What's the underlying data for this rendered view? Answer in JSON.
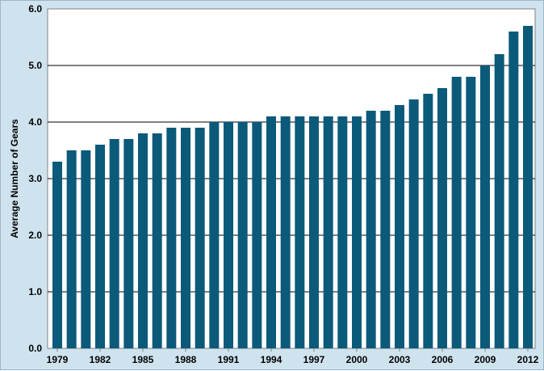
{
  "chart_data": {
    "type": "bar",
    "title": "",
    "xlabel": "",
    "ylabel": "Average Number of Gears",
    "ylim": [
      0,
      6
    ],
    "yticks": [
      "0.0",
      "1.0",
      "2.0",
      "3.0",
      "4.0",
      "5.0",
      "6.0"
    ],
    "grid": true,
    "legend": "none",
    "categories": [
      "1979",
      "1980",
      "1981",
      "1982",
      "1983",
      "1984",
      "1985",
      "1986",
      "1987",
      "1988",
      "1989",
      "1990",
      "1991",
      "1992",
      "1993",
      "1994",
      "1995",
      "1996",
      "1997",
      "1998",
      "1999",
      "2000",
      "2001",
      "2002",
      "2003",
      "2004",
      "2005",
      "2006",
      "2007",
      "2008",
      "2009",
      "2010",
      "2011",
      "2012"
    ],
    "xtick_labels": [
      "1979",
      "1982",
      "1985",
      "1988",
      "1991",
      "1994",
      "1997",
      "2000",
      "2003",
      "2006",
      "2009",
      "2012"
    ],
    "values": [
      3.3,
      3.5,
      3.5,
      3.6,
      3.7,
      3.7,
      3.8,
      3.8,
      3.9,
      3.9,
      3.9,
      4.0,
      4.0,
      4.0,
      4.0,
      4.1,
      4.1,
      4.1,
      4.1,
      4.1,
      4.1,
      4.1,
      4.2,
      4.2,
      4.3,
      4.4,
      4.5,
      4.6,
      4.8,
      4.8,
      5.0,
      5.2,
      5.6,
      5.7
    ],
    "colors": {
      "bar": "#0b5a7a",
      "frame_background": "#cfe3ef",
      "plot_background": "#ffffff",
      "gridline": "#000000"
    }
  }
}
